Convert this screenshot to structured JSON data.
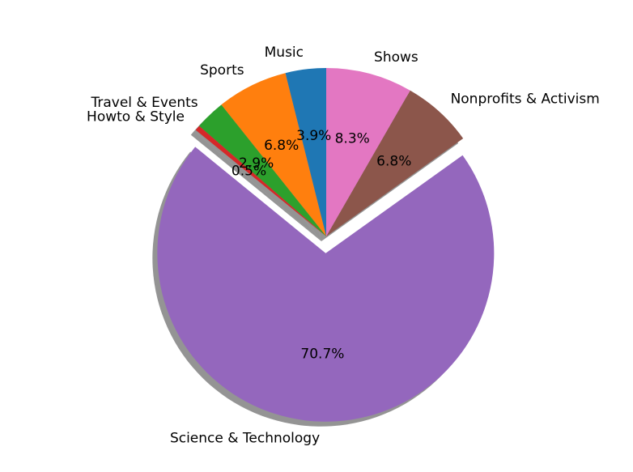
{
  "chart_data": {
    "type": "pie",
    "title": "",
    "categories": [
      "Music",
      "Sports",
      "Travel & Events",
      "Howto & Style",
      "Science & Technology",
      "Nonprofits & Activism",
      "Shows"
    ],
    "values": [
      3.9,
      6.8,
      2.9,
      0.5,
      70.7,
      6.8,
      8.3
    ],
    "percent_labels": [
      "3.9%",
      "6.8%",
      "2.9%",
      "0.5%",
      "70.7%",
      "6.8%",
      "8.3%"
    ],
    "colors": [
      "#1f77b4",
      "#ff7f0e",
      "#2ca02c",
      "#d62728",
      "#9467bd",
      "#8c564b",
      "#e377c2"
    ],
    "exploded": [
      "Science & Technology"
    ],
    "start_angle_deg": 90,
    "direction": "counterclockwise",
    "shadow": true,
    "legend": "none"
  }
}
